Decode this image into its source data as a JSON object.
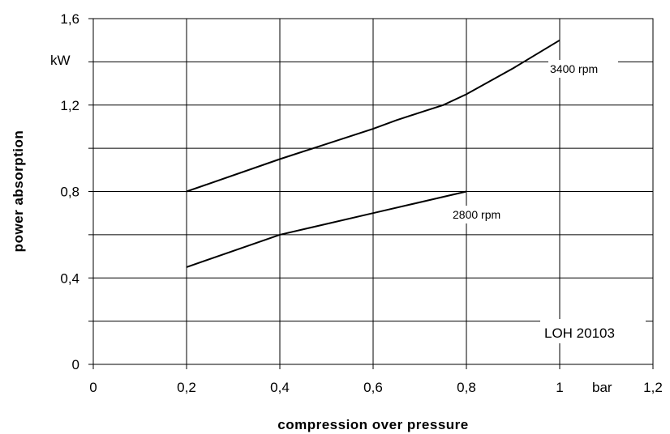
{
  "chart_data": {
    "type": "line",
    "xlabel": "compression over pressure",
    "ylabel": "power absorption",
    "x_unit": "bar",
    "y_unit": "kW",
    "xlim": [
      0,
      1.2
    ],
    "ylim": [
      0,
      1.6
    ],
    "x_ticks": [
      "0",
      "0,2",
      "0,4",
      "0,6",
      "0,8",
      "1",
      "1,2"
    ],
    "y_ticks": [
      "0",
      "0,4",
      "0,8",
      "1,2",
      "1,6"
    ],
    "grid": true,
    "model_code": "LOH 20103",
    "series": [
      {
        "name": "3400 rpm",
        "x": [
          0.2,
          0.4,
          0.5,
          0.6,
          0.65,
          0.7,
          0.75,
          0.8,
          0.9,
          1.0
        ],
        "y": [
          0.8,
          0.95,
          1.02,
          1.09,
          1.13,
          1.165,
          1.2,
          1.25,
          1.37,
          1.5
        ]
      },
      {
        "name": "2800 rpm",
        "x": [
          0.2,
          0.4,
          0.6,
          0.8
        ],
        "y": [
          0.45,
          0.6,
          0.7,
          0.8
        ]
      }
    ]
  }
}
